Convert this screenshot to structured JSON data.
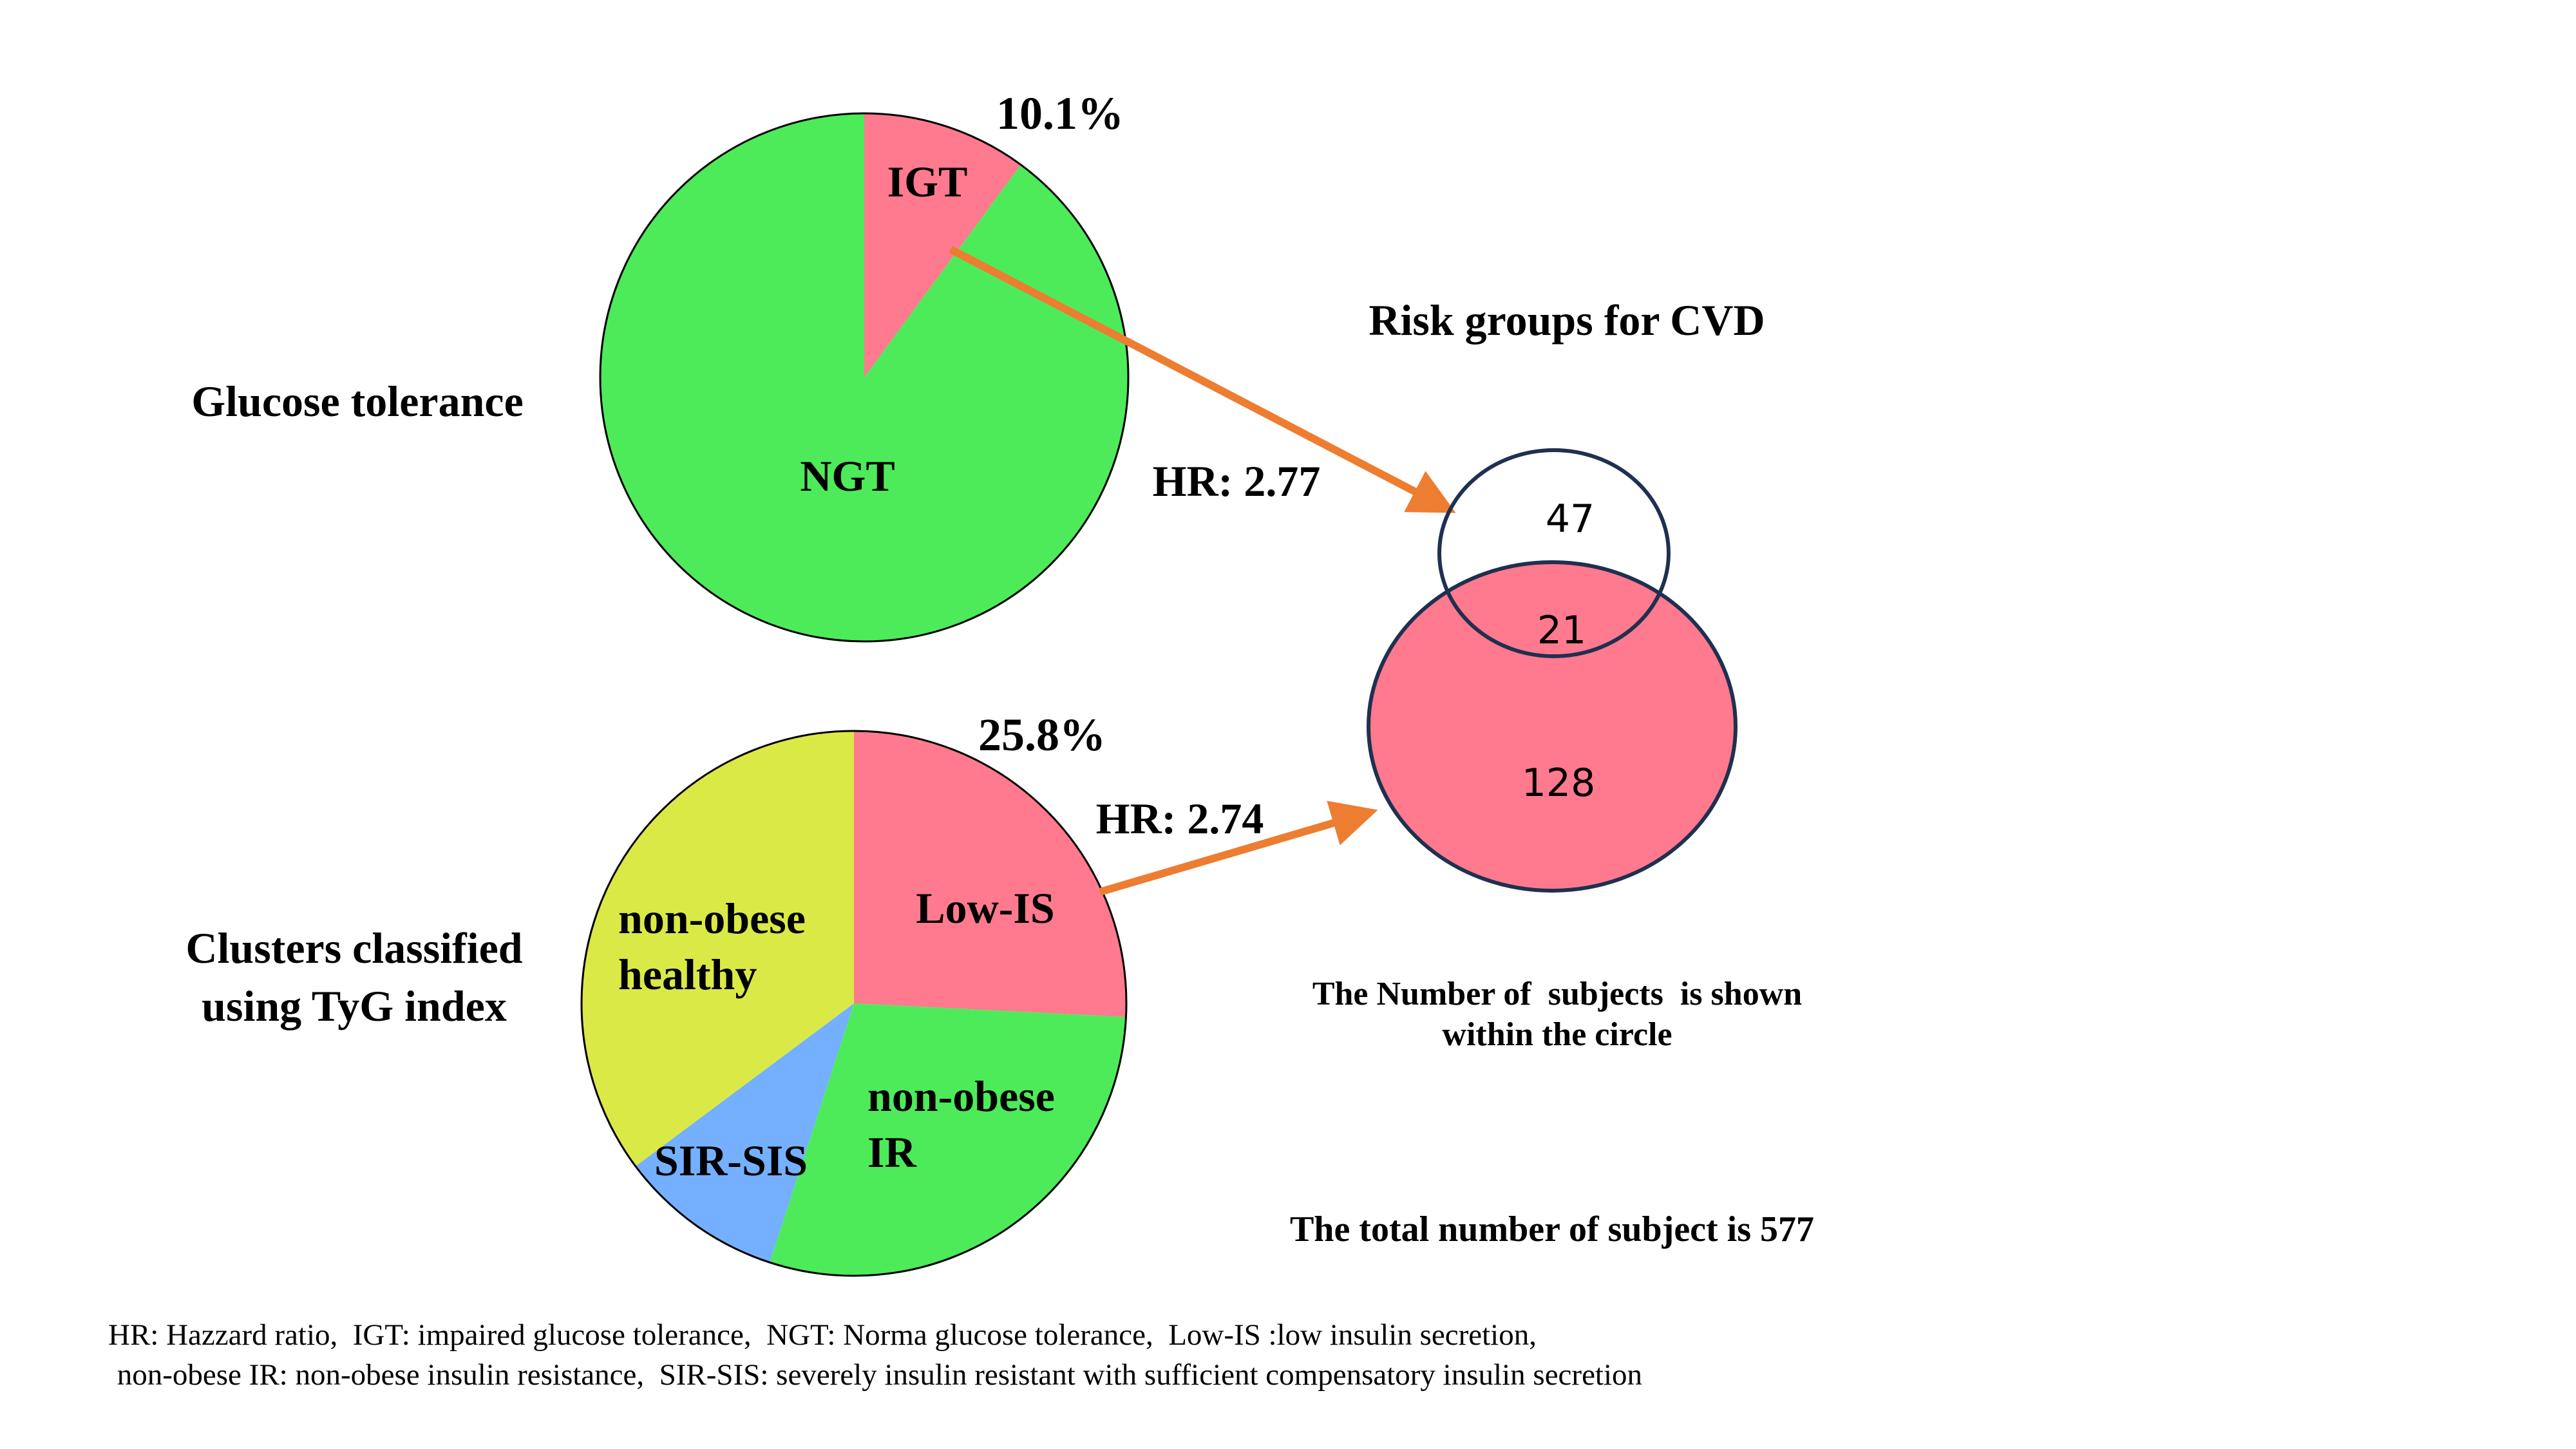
{
  "colors": {
    "pink": "#FF7A8E",
    "green": "#4DEB5A",
    "yellow": "#DBE946",
    "blue": "#74B0FF",
    "arrow": "#ED7D31",
    "outline": "#1F3050"
  },
  "chart_data": [
    {
      "type": "pie",
      "row_label": "Glucose tolerance",
      "slices": [
        {
          "label": "IGT",
          "value": 10.1,
          "color": "#FF7A8E"
        },
        {
          "label": "NGT",
          "value": 89.9,
          "color": "#4DEB5A"
        }
      ],
      "percent_label": "10.1%",
      "hr_label": "HR: 2.77"
    },
    {
      "type": "pie",
      "row_label_lines": [
        "Clusters classified",
        "using TyG index"
      ],
      "slices": [
        {
          "label": "Low-IS",
          "value": 25.8,
          "color": "#FF7A8E"
        },
        {
          "label_lines": [
            "non-obese",
            "IR"
          ],
          "value": 29.2,
          "color": "#4DEB5A"
        },
        {
          "label": "SIR-SIS",
          "value": 9.8,
          "color": "#74B0FF"
        },
        {
          "label_lines": [
            "non-obese",
            "healthy"
          ],
          "value": 35.2,
          "color": "#DBE946"
        }
      ],
      "percent_label": "25.8%",
      "hr_label": "HR: 2.74"
    }
  ],
  "venn": {
    "title": "Risk groups for CVD",
    "top_only": "47",
    "overlap": "21",
    "bottom_only": "128",
    "caption_lines": [
      "The Number of  subjects  is shown",
      "within the circle"
    ],
    "total": "The total number of subject is 577"
  },
  "footnote": [
    "HR: Hazzard ratio,  IGT: impaired glucose tolerance,  NGT: Norma glucose tolerance,  Low-IS :low insulin secretion,",
    " non-obese IR: non-obese insulin resistance,  SIR-SIS: severely insulin resistant with sufficient compensatory insulin secretion"
  ]
}
